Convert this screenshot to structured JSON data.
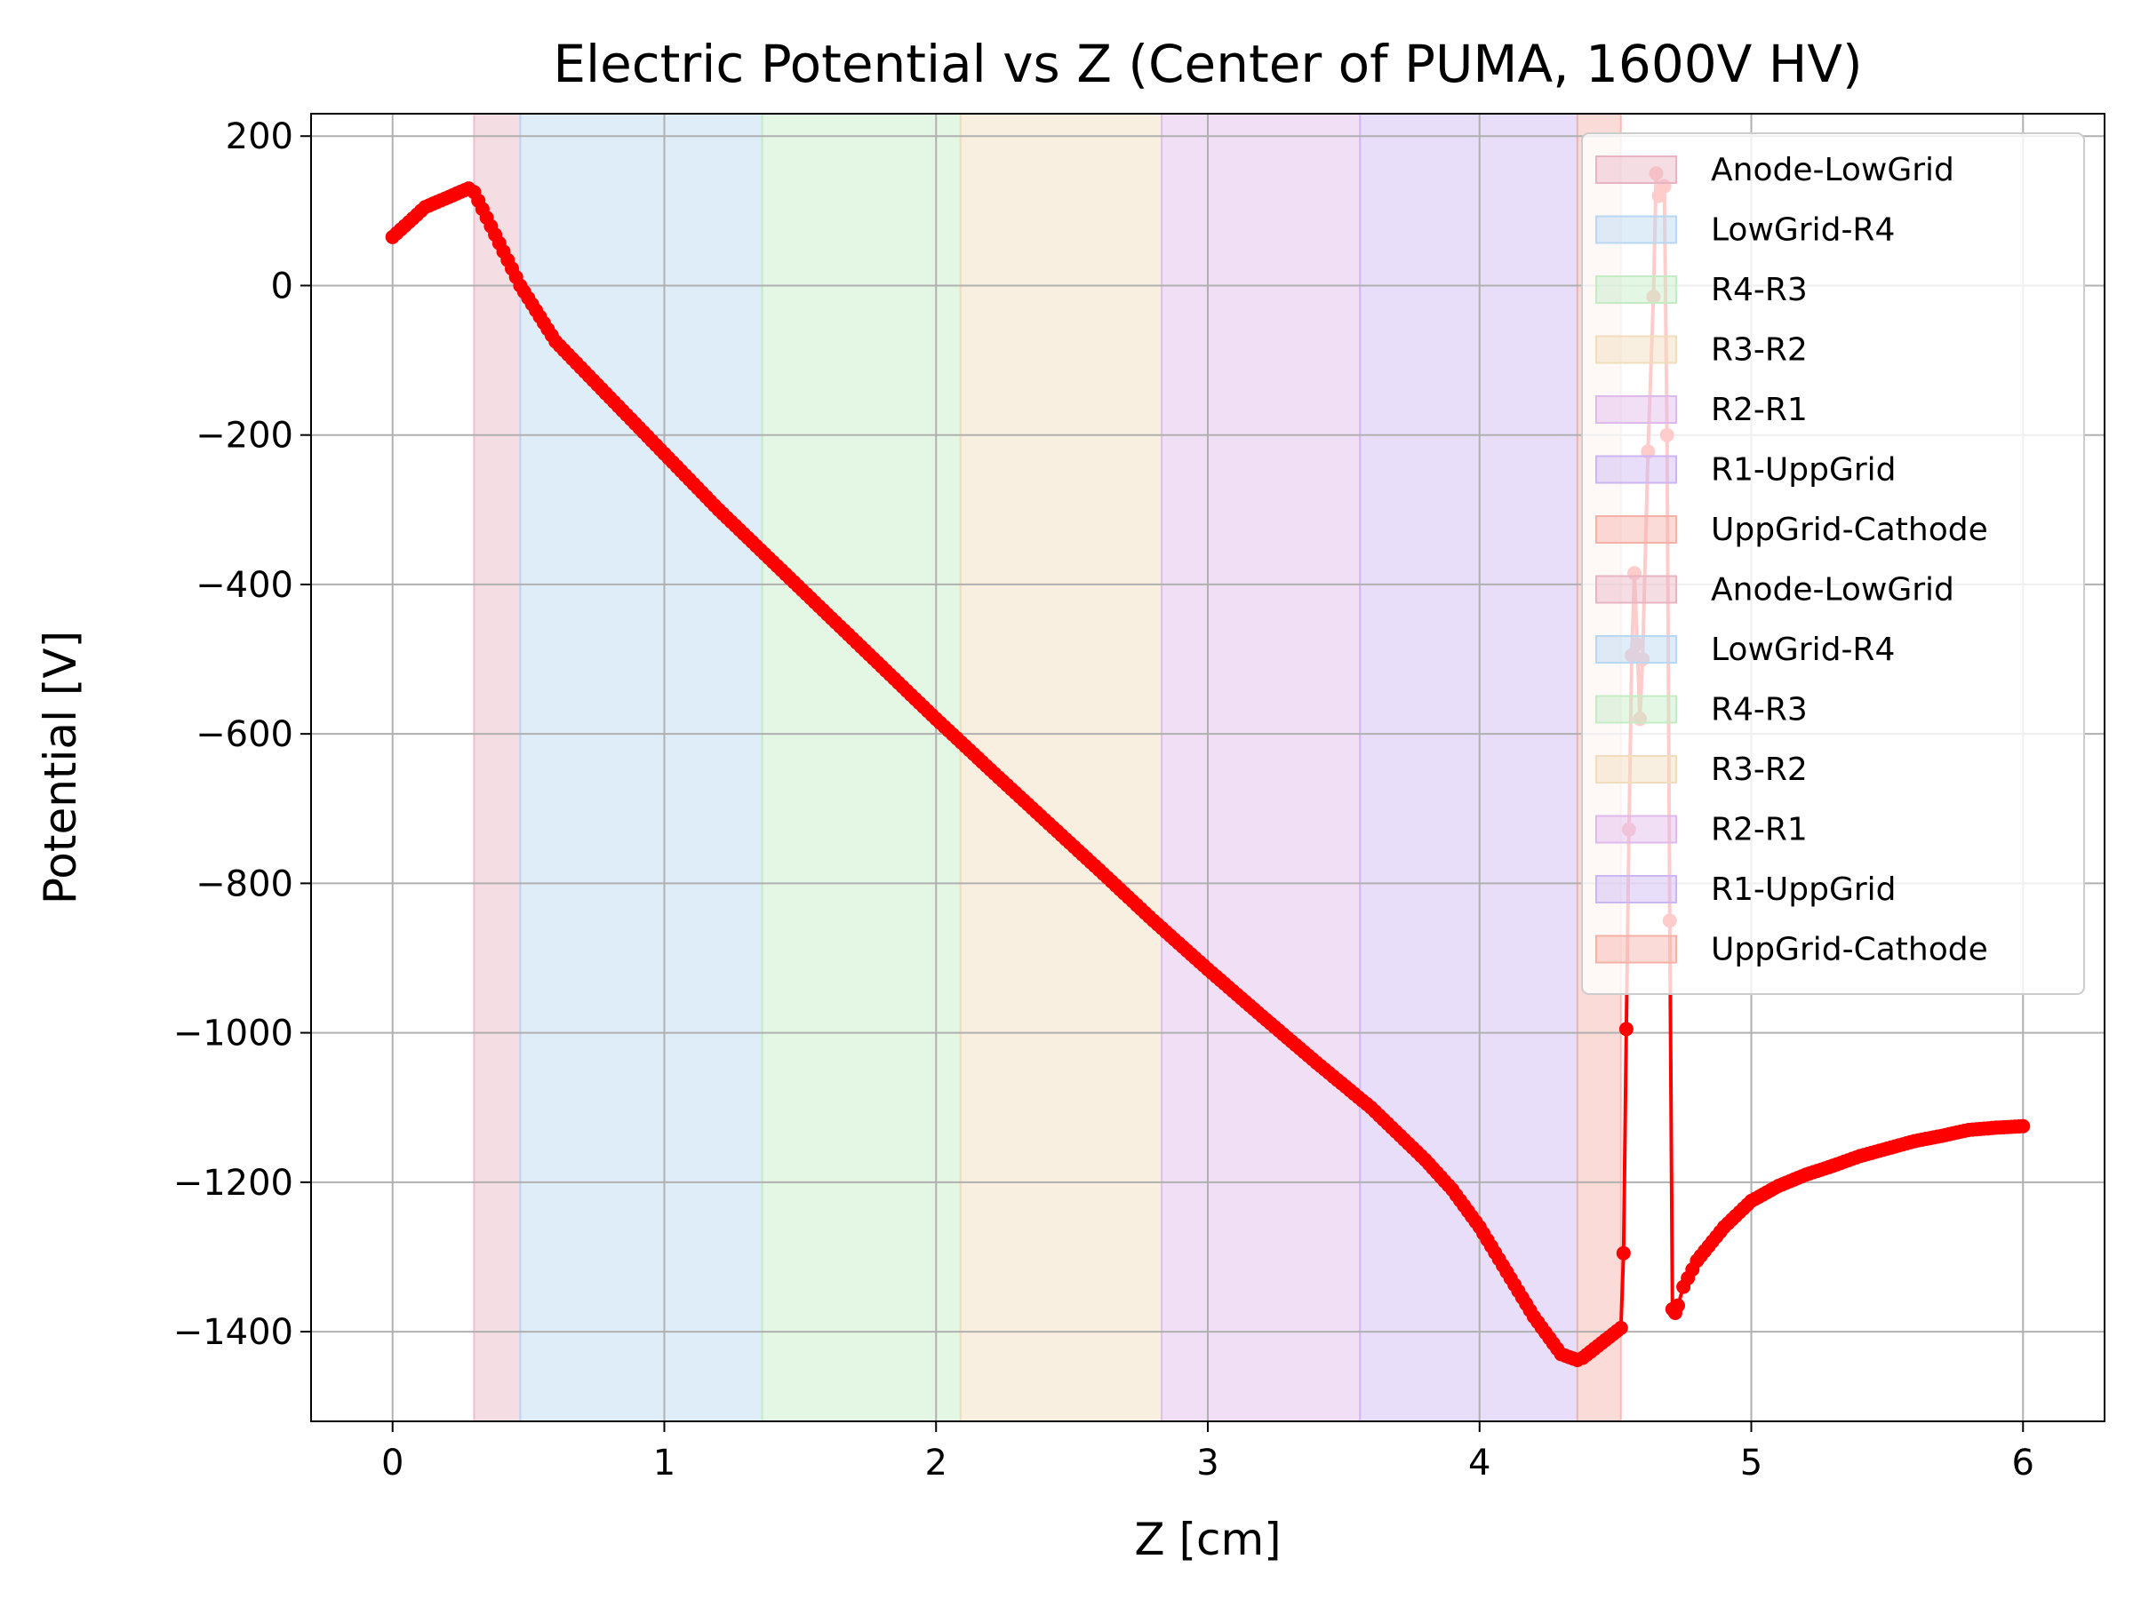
{
  "chart_data": {
    "type": "line",
    "title": "Electric Potential vs Z (Center of PUMA, 1600V HV)",
    "xlabel": "Z [cm]",
    "ylabel": "Potential [V]",
    "xlim": [
      -0.3,
      6.3
    ],
    "ylim": [
      -1520,
      230
    ],
    "grid": true,
    "legend_position": "upper right",
    "xticks": [
      0,
      1,
      2,
      3,
      4,
      5,
      6
    ],
    "xtick_labels": [
      "0",
      "1",
      "2",
      "3",
      "4",
      "5",
      "6"
    ],
    "yticks": [
      200,
      0,
      -200,
      -400,
      -600,
      -800,
      -1000,
      -1200,
      -1400
    ],
    "ytick_labels": [
      "200",
      "0",
      "−200",
      "−400",
      "−600",
      "−800",
      "−1000",
      "−1200",
      "−1400"
    ],
    "regions": [
      {
        "name": "Anode-LowGrid",
        "start": 0.3,
        "end": 0.47,
        "color": "#e8b4c4"
      },
      {
        "name": "LowGrid-R4",
        "start": 0.47,
        "end": 1.36,
        "color": "#b7d7f2"
      },
      {
        "name": "R4-R3",
        "start": 1.36,
        "end": 2.09,
        "color": "#c4ecc4"
      },
      {
        "name": "R3-R2",
        "start": 2.09,
        "end": 2.83,
        "color": "#f1dcbb"
      },
      {
        "name": "R2-R1",
        "start": 2.83,
        "end": 3.56,
        "color": "#dfb9ec"
      },
      {
        "name": "R1-UppGrid",
        "start": 3.56,
        "end": 4.36,
        "color": "#ccb6f2"
      },
      {
        "name": "UppGrid-Cathode",
        "start": 4.36,
        "end": 4.52,
        "color": "#f6b0a6"
      }
    ],
    "legend_entries": [
      {
        "label": "Anode-LowGrid",
        "color": "#e8b4c4"
      },
      {
        "label": "LowGrid-R4",
        "color": "#b7d7f2"
      },
      {
        "label": "R4-R3",
        "color": "#c4ecc4"
      },
      {
        "label": "R3-R2",
        "color": "#f1dcbb"
      },
      {
        "label": "R2-R1",
        "color": "#dfb9ec"
      },
      {
        "label": "R1-UppGrid",
        "color": "#ccb6f2"
      },
      {
        "label": "UppGrid-Cathode",
        "color": "#f6b0a6"
      },
      {
        "label": "Anode-LowGrid",
        "color": "#e8b4c4"
      },
      {
        "label": "LowGrid-R4",
        "color": "#b7d7f2"
      },
      {
        "label": "R4-R3",
        "color": "#c4ecc4"
      },
      {
        "label": "R3-R2",
        "color": "#f1dcbb"
      },
      {
        "label": "R2-R1",
        "color": "#dfb9ec"
      },
      {
        "label": "R1-UppGrid",
        "color": "#ccb6f2"
      },
      {
        "label": "UppGrid-Cathode",
        "color": "#f6b0a6"
      }
    ],
    "series": [
      {
        "color": "#ff0000",
        "x": [
          0,
          0.12,
          0.28,
          0.3,
          0.47,
          0.6,
          0.8,
          1.0,
          1.2,
          1.4,
          1.6,
          1.8,
          2.0,
          2.2,
          2.4,
          2.6,
          2.8,
          3.0,
          3.2,
          3.4,
          3.6,
          3.8,
          3.9,
          4.0,
          4.1,
          4.2,
          4.3,
          4.36,
          4.38,
          4.45,
          4.52,
          4.53,
          4.54,
          4.55,
          4.56,
          4.57,
          4.58,
          4.59,
          4.6,
          4.62,
          4.64,
          4.65,
          4.66,
          4.68,
          4.69,
          4.7,
          4.71,
          4.72,
          4.73,
          4.75,
          4.8,
          4.9,
          5.0,
          5.1,
          5.2,
          5.3,
          5.4,
          5.5,
          5.6,
          5.7,
          5.8,
          5.9,
          6.0
        ],
        "y": [
          65,
          105,
          130,
          125,
          0,
          -75,
          -150,
          -225,
          -300,
          -370,
          -440,
          -510,
          -580,
          -648,
          -715,
          -782,
          -850,
          -915,
          -978,
          -1040,
          -1100,
          -1170,
          -1210,
          -1260,
          -1320,
          -1380,
          -1430,
          -1438,
          -1435,
          -1415,
          -1395,
          -1295,
          -995,
          -728,
          -495,
          -385,
          -480,
          -580,
          -500,
          -222,
          -15,
          150,
          120,
          133,
          -200,
          -850,
          -1370,
          -1375,
          -1365,
          -1340,
          -1305,
          -1260,
          -1225,
          -1205,
          -1190,
          -1178,
          -1165,
          -1155,
          -1145,
          -1138,
          -1130,
          -1127,
          -1125
        ]
      }
    ]
  }
}
